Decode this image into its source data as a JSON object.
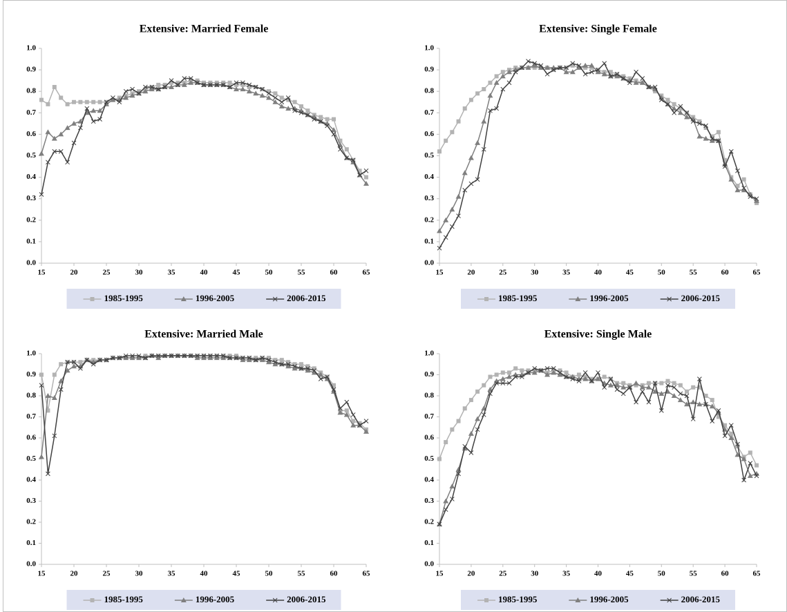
{
  "chart_data": [
    {
      "type": "line",
      "title": "Extensive: Married Female",
      "legend": "bottom",
      "xlim": [
        15,
        65
      ],
      "xticks": [
        15,
        20,
        25,
        30,
        35,
        40,
        45,
        50,
        55,
        60,
        65
      ],
      "ylim": [
        0,
        1
      ],
      "yticks": [
        {
          "value": 0,
          "label": "0.0"
        },
        0.1,
        0.2,
        0.3,
        0.4,
        0.5,
        0.6,
        0.7,
        0.8,
        0.9,
        {
          "value": 1,
          "label": "1.0"
        }
      ],
      "x": [
        15,
        16,
        17,
        18,
        19,
        20,
        21,
        22,
        23,
        24,
        25,
        26,
        27,
        28,
        29,
        30,
        31,
        32,
        33,
        34,
        35,
        36,
        37,
        38,
        39,
        40,
        41,
        42,
        43,
        44,
        45,
        46,
        47,
        48,
        49,
        50,
        51,
        52,
        53,
        54,
        55,
        56,
        57,
        58,
        59,
        60,
        61,
        62,
        63,
        64,
        65
      ],
      "series": [
        {
          "name": "1985-1995",
          "color": "#b3b3b3",
          "marker": "square",
          "values": [
            0.76,
            0.74,
            0.82,
            0.77,
            0.74,
            0.75,
            0.75,
            0.75,
            0.75,
            0.75,
            0.75,
            0.76,
            0.77,
            0.78,
            0.79,
            0.8,
            0.81,
            0.82,
            0.83,
            0.83,
            0.84,
            0.84,
            0.84,
            0.85,
            0.85,
            0.84,
            0.84,
            0.84,
            0.84,
            0.84,
            0.83,
            0.83,
            0.82,
            0.82,
            0.81,
            0.8,
            0.79,
            0.77,
            0.76,
            0.75,
            0.73,
            0.71,
            0.69,
            0.68,
            0.67,
            0.67,
            0.57,
            0.53,
            0.48,
            0.43,
            0.4
          ]
        },
        {
          "name": "1996-2005",
          "color": "#7f7f7f",
          "marker": "triangle",
          "values": [
            0.51,
            0.61,
            0.58,
            0.6,
            0.63,
            0.65,
            0.66,
            0.7,
            0.71,
            0.71,
            0.74,
            0.76,
            0.76,
            0.77,
            0.78,
            0.79,
            0.8,
            0.81,
            0.81,
            0.82,
            0.82,
            0.83,
            0.83,
            0.84,
            0.84,
            0.83,
            0.83,
            0.83,
            0.83,
            0.82,
            0.81,
            0.81,
            0.8,
            0.79,
            0.78,
            0.77,
            0.75,
            0.73,
            0.72,
            0.72,
            0.71,
            0.69,
            0.68,
            0.66,
            0.65,
            0.62,
            0.55,
            0.49,
            0.47,
            0.41,
            0.37
          ]
        },
        {
          "name": "2006-2015",
          "color": "#404040",
          "marker": "cross",
          "values": [
            0.32,
            0.47,
            0.52,
            0.52,
            0.47,
            0.56,
            0.63,
            0.72,
            0.66,
            0.67,
            0.75,
            0.77,
            0.75,
            0.8,
            0.81,
            0.79,
            0.82,
            0.82,
            0.81,
            0.82,
            0.85,
            0.83,
            0.86,
            0.86,
            0.84,
            0.83,
            0.83,
            0.83,
            0.83,
            0.82,
            0.84,
            0.84,
            0.83,
            0.82,
            0.81,
            0.79,
            0.77,
            0.75,
            0.77,
            0.71,
            0.7,
            0.69,
            0.67,
            0.66,
            0.64,
            0.6,
            0.53,
            0.49,
            0.48,
            0.41,
            0.43
          ]
        }
      ]
    },
    {
      "type": "line",
      "title": "Extensive: Single Female",
      "legend": "bottom",
      "xlim": [
        15,
        65
      ],
      "xticks": [
        15,
        20,
        25,
        30,
        35,
        40,
        45,
        50,
        55,
        60,
        65
      ],
      "ylim": [
        0,
        1
      ],
      "yticks": [
        {
          "value": 0,
          "label": "0.0"
        },
        0.1,
        0.2,
        0.3,
        0.4,
        0.5,
        0.6,
        0.7,
        0.8,
        0.9,
        {
          "value": 1,
          "label": "1.0"
        }
      ],
      "x": [
        15,
        16,
        17,
        18,
        19,
        20,
        21,
        22,
        23,
        24,
        25,
        26,
        27,
        28,
        29,
        30,
        31,
        32,
        33,
        34,
        35,
        36,
        37,
        38,
        39,
        40,
        41,
        42,
        43,
        44,
        45,
        46,
        47,
        48,
        49,
        50,
        51,
        52,
        53,
        54,
        55,
        56,
        57,
        58,
        59,
        60,
        61,
        62,
        63,
        64,
        65
      ],
      "series": [
        {
          "name": "1985-1995",
          "color": "#b3b3b3",
          "marker": "square",
          "values": [
            0.52,
            0.57,
            0.61,
            0.66,
            0.72,
            0.76,
            0.79,
            0.81,
            0.84,
            0.87,
            0.89,
            0.9,
            0.91,
            0.91,
            0.91,
            0.91,
            0.91,
            0.91,
            0.9,
            0.91,
            0.91,
            0.92,
            0.91,
            0.91,
            0.91,
            0.9,
            0.89,
            0.89,
            0.88,
            0.87,
            0.86,
            0.85,
            0.84,
            0.82,
            0.8,
            0.78,
            0.76,
            0.74,
            0.72,
            0.7,
            0.68,
            0.66,
            0.63,
            0.59,
            0.61,
            0.48,
            0.4,
            0.36,
            0.39,
            0.32,
            0.28
          ]
        },
        {
          "name": "1996-2005",
          "color": "#7f7f7f",
          "marker": "triangle",
          "values": [
            0.15,
            0.2,
            0.25,
            0.31,
            0.42,
            0.49,
            0.56,
            0.66,
            0.78,
            0.84,
            0.87,
            0.89,
            0.9,
            0.91,
            0.91,
            0.92,
            0.91,
            0.91,
            0.91,
            0.91,
            0.89,
            0.89,
            0.91,
            0.92,
            0.92,
            0.89,
            0.88,
            0.87,
            0.87,
            0.86,
            0.85,
            0.84,
            0.84,
            0.82,
            0.81,
            0.77,
            0.74,
            0.72,
            0.7,
            0.68,
            0.67,
            0.59,
            0.58,
            0.57,
            0.57,
            0.46,
            0.39,
            0.34,
            0.34,
            0.32,
            0.29
          ]
        },
        {
          "name": "2006-2015",
          "color": "#404040",
          "marker": "cross",
          "values": [
            0.07,
            0.12,
            0.17,
            0.22,
            0.34,
            0.37,
            0.39,
            0.53,
            0.71,
            0.72,
            0.81,
            0.84,
            0.89,
            0.91,
            0.94,
            0.93,
            0.92,
            0.88,
            0.9,
            0.91,
            0.91,
            0.93,
            0.92,
            0.88,
            0.89,
            0.9,
            0.93,
            0.87,
            0.88,
            0.86,
            0.84,
            0.89,
            0.86,
            0.82,
            0.82,
            0.76,
            0.74,
            0.7,
            0.73,
            0.7,
            0.66,
            0.65,
            0.64,
            0.58,
            0.57,
            0.45,
            0.52,
            0.43,
            0.35,
            0.31,
            0.3
          ]
        }
      ]
    },
    {
      "type": "line",
      "title": "Extensive: Married Male",
      "legend": "bottom",
      "xlim": [
        15,
        65
      ],
      "xticks": [
        15,
        20,
        25,
        30,
        35,
        40,
        45,
        50,
        55,
        60,
        65
      ],
      "ylim": [
        0,
        1
      ],
      "yticks": [
        {
          "value": 0,
          "label": "0.0"
        },
        0.1,
        0.2,
        0.3,
        0.4,
        0.5,
        0.6,
        0.7,
        0.8,
        0.9,
        {
          "value": 1,
          "label": "1.0"
        }
      ],
      "x": [
        15,
        16,
        17,
        18,
        19,
        20,
        21,
        22,
        23,
        24,
        25,
        26,
        27,
        28,
        29,
        30,
        31,
        32,
        33,
        34,
        35,
        36,
        37,
        38,
        39,
        40,
        41,
        42,
        43,
        44,
        45,
        46,
        47,
        48,
        49,
        50,
        51,
        52,
        53,
        54,
        55,
        56,
        57,
        58,
        59,
        60,
        61,
        62,
        63,
        64,
        65
      ],
      "series": [
        {
          "name": "1985-1995",
          "color": "#b3b3b3",
          "marker": "square",
          "values": [
            0.9,
            0.73,
            0.9,
            0.95,
            0.96,
            0.96,
            0.96,
            0.97,
            0.97,
            0.97,
            0.97,
            0.98,
            0.98,
            0.98,
            0.98,
            0.98,
            0.99,
            0.99,
            0.99,
            0.99,
            0.99,
            0.99,
            0.99,
            0.99,
            0.99,
            0.99,
            0.99,
            0.99,
            0.99,
            0.99,
            0.99,
            0.98,
            0.98,
            0.98,
            0.98,
            0.98,
            0.97,
            0.97,
            0.96,
            0.95,
            0.95,
            0.94,
            0.93,
            0.91,
            0.89,
            0.85,
            0.73,
            0.73,
            0.68,
            0.67,
            0.64
          ]
        },
        {
          "name": "1996-2005",
          "color": "#7f7f7f",
          "marker": "triangle",
          "values": [
            0.51,
            0.8,
            0.79,
            0.87,
            0.92,
            0.94,
            0.94,
            0.97,
            0.96,
            0.97,
            0.97,
            0.98,
            0.98,
            0.98,
            0.98,
            0.98,
            0.98,
            0.99,
            0.98,
            0.99,
            0.99,
            0.99,
            0.99,
            0.99,
            0.98,
            0.98,
            0.98,
            0.98,
            0.98,
            0.98,
            0.98,
            0.97,
            0.97,
            0.97,
            0.97,
            0.96,
            0.95,
            0.95,
            0.94,
            0.93,
            0.93,
            0.92,
            0.91,
            0.9,
            0.88,
            0.82,
            0.72,
            0.71,
            0.66,
            0.66,
            0.63
          ]
        },
        {
          "name": "2006-2015",
          "color": "#404040",
          "marker": "cross",
          "values": [
            0.85,
            0.43,
            0.61,
            0.83,
            0.96,
            0.96,
            0.93,
            0.97,
            0.95,
            0.97,
            0.97,
            0.98,
            0.98,
            0.99,
            0.99,
            0.99,
            0.98,
            0.99,
            0.99,
            0.99,
            0.99,
            0.99,
            0.99,
            0.99,
            0.99,
            0.99,
            0.99,
            0.99,
            0.99,
            0.98,
            0.98,
            0.98,
            0.98,
            0.97,
            0.98,
            0.97,
            0.96,
            0.95,
            0.95,
            0.94,
            0.93,
            0.93,
            0.92,
            0.88,
            0.89,
            0.83,
            0.74,
            0.77,
            0.71,
            0.66,
            0.68
          ]
        }
      ]
    },
    {
      "type": "line",
      "title": "Extensive: Single Male",
      "legend": "bottom",
      "xlim": [
        15,
        65
      ],
      "xticks": [
        15,
        20,
        25,
        30,
        35,
        40,
        45,
        50,
        55,
        60,
        65
      ],
      "ylim": [
        0,
        1
      ],
      "yticks": [
        {
          "value": 0,
          "label": "0.0"
        },
        0.1,
        0.2,
        0.3,
        0.4,
        0.5,
        0.6,
        0.7,
        0.8,
        0.9,
        {
          "value": 1,
          "label": "1.0"
        }
      ],
      "x": [
        15,
        16,
        17,
        18,
        19,
        20,
        21,
        22,
        23,
        24,
        25,
        26,
        27,
        28,
        29,
        30,
        31,
        32,
        33,
        34,
        35,
        36,
        37,
        38,
        39,
        40,
        41,
        42,
        43,
        44,
        45,
        46,
        47,
        48,
        49,
        50,
        51,
        52,
        53,
        54,
        55,
        56,
        57,
        58,
        59,
        60,
        61,
        62,
        63,
        64,
        65
      ],
      "series": [
        {
          "name": "1985-1995",
          "color": "#b3b3b3",
          "marker": "square",
          "values": [
            0.5,
            0.58,
            0.64,
            0.68,
            0.74,
            0.78,
            0.82,
            0.85,
            0.89,
            0.9,
            0.91,
            0.91,
            0.93,
            0.92,
            0.92,
            0.92,
            0.92,
            0.91,
            0.92,
            0.92,
            0.91,
            0.89,
            0.9,
            0.89,
            0.88,
            0.88,
            0.89,
            0.88,
            0.86,
            0.86,
            0.85,
            0.85,
            0.85,
            0.86,
            0.86,
            0.86,
            0.87,
            0.86,
            0.85,
            0.82,
            0.84,
            0.84,
            0.8,
            0.78,
            0.7,
            0.66,
            0.62,
            0.56,
            0.51,
            0.53,
            0.47
          ]
        },
        {
          "name": "1996-2005",
          "color": "#7f7f7f",
          "marker": "triangle",
          "values": [
            0.19,
            0.3,
            0.37,
            0.45,
            0.55,
            0.62,
            0.69,
            0.74,
            0.83,
            0.87,
            0.88,
            0.89,
            0.9,
            0.9,
            0.91,
            0.91,
            0.92,
            0.9,
            0.91,
            0.9,
            0.89,
            0.89,
            0.88,
            0.88,
            0.87,
            0.88,
            0.86,
            0.85,
            0.85,
            0.84,
            0.84,
            0.86,
            0.84,
            0.84,
            0.82,
            0.81,
            0.82,
            0.8,
            0.78,
            0.76,
            0.77,
            0.76,
            0.76,
            0.75,
            0.72,
            0.64,
            0.6,
            0.52,
            0.5,
            0.42,
            0.43
          ]
        },
        {
          "name": "2006-2015",
          "color": "#404040",
          "marker": "cross",
          "values": [
            0.19,
            0.26,
            0.31,
            0.43,
            0.56,
            0.53,
            0.64,
            0.71,
            0.81,
            0.86,
            0.86,
            0.86,
            0.89,
            0.89,
            0.91,
            0.93,
            0.92,
            0.93,
            0.93,
            0.91,
            0.89,
            0.88,
            0.87,
            0.91,
            0.87,
            0.91,
            0.84,
            0.88,
            0.83,
            0.81,
            0.84,
            0.77,
            0.82,
            0.77,
            0.86,
            0.73,
            0.85,
            0.84,
            0.81,
            0.8,
            0.69,
            0.88,
            0.76,
            0.68,
            0.73,
            0.61,
            0.66,
            0.57,
            0.4,
            0.48,
            0.42
          ]
        }
      ]
    }
  ]
}
